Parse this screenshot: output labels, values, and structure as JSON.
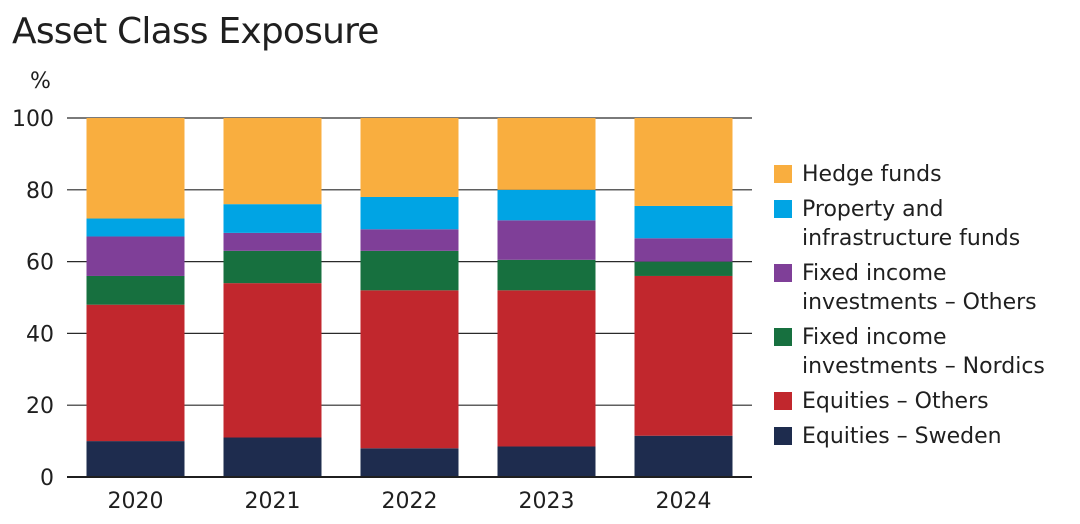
{
  "chart_data": {
    "type": "bar",
    "stacked": true,
    "title": "Asset Class Exposure",
    "ylabel": "%",
    "xlabel": "",
    "ylim": [
      0,
      100
    ],
    "yticks": [
      0,
      20,
      40,
      60,
      80,
      100
    ],
    "grid": true,
    "legend_position": "right",
    "categories": [
      "2020",
      "2021",
      "2022",
      "2023",
      "2024"
    ],
    "series": [
      {
        "name": "Equities – Sweden",
        "color": "#1e2c4e",
        "values": [
          10,
          11,
          8,
          8.5,
          11.5
        ]
      },
      {
        "name": "Equities – Others",
        "color": "#c1272d",
        "values": [
          38,
          43,
          44,
          43.5,
          44.5
        ]
      },
      {
        "name": "Fixed income investments – Nordics",
        "color": "#17703f",
        "values": [
          8,
          9,
          11,
          8.5,
          4
        ]
      },
      {
        "name": "Fixed income investments – Others",
        "color": "#7f3f98",
        "values": [
          11,
          5,
          6,
          11,
          6.5
        ]
      },
      {
        "name": "Property and infrastructure funds",
        "color": "#00a4e4",
        "values": [
          5,
          8,
          9,
          8.5,
          9
        ]
      },
      {
        "name": "Hedge funds",
        "color": "#f9ae3f",
        "values": [
          28,
          24,
          22,
          20,
          24.5
        ]
      }
    ],
    "legend": [
      {
        "label": "Hedge funds",
        "color": "#f9ae3f"
      },
      {
        "label": "Property and\ninfrastructure funds",
        "color": "#00a4e4"
      },
      {
        "label": "Fixed income\ninvestments – Others",
        "color": "#7f3f98"
      },
      {
        "label": "Fixed income\ninvestments – Nordics",
        "color": "#17703f"
      },
      {
        "label": "Equities – Others",
        "color": "#c1272d"
      },
      {
        "label": "Equities – Sweden",
        "color": "#1e2c4e"
      }
    ]
  }
}
